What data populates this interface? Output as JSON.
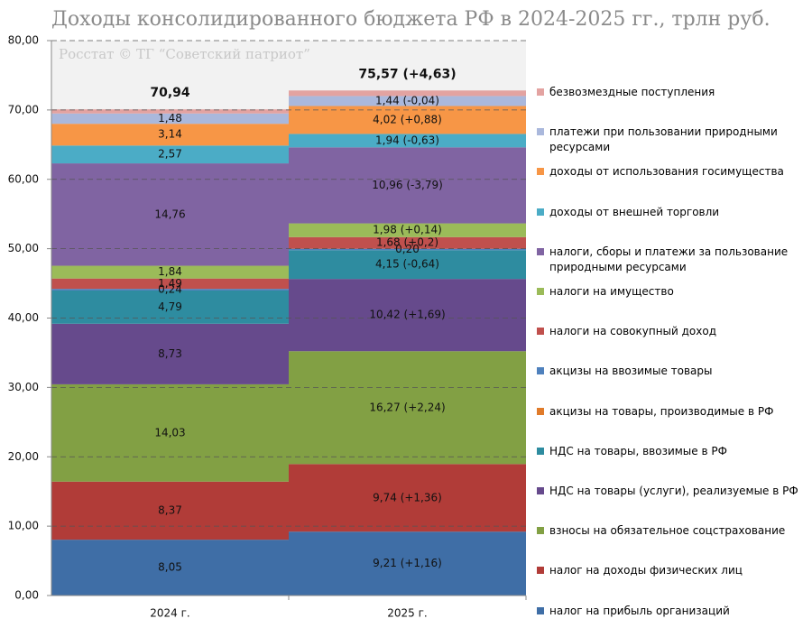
{
  "chart_data": {
    "type": "stacked_bar",
    "title": "Доходы консолидированного бюджета РФ в 2024-2025 гг., трлн руб.",
    "watermark": "Росстат © ТГ “Советский патриот”",
    "categories": [
      "2024 г.",
      "2025 г."
    ],
    "total_labels": [
      "70,94",
      "75,57 (+4,63)"
    ],
    "ylim": [
      0,
      80
    ],
    "yticks": [
      {
        "value": 0,
        "label": "0,00"
      },
      {
        "value": 10,
        "label": "10,00"
      },
      {
        "value": 20,
        "label": "20,00"
      },
      {
        "value": 30,
        "label": "30,00"
      },
      {
        "value": 40,
        "label": "40,00"
      },
      {
        "value": 50,
        "label": "50,00"
      },
      {
        "value": 60,
        "label": "60,00"
      },
      {
        "value": 70,
        "label": "70,00"
      },
      {
        "value": 80,
        "label": "80,00"
      }
    ],
    "grid": true,
    "series": [
      {
        "name": "налог на прибыль организаций",
        "color": "#3f6ea6",
        "values": [
          8.05,
          9.21
        ],
        "value_labels": [
          "8,05",
          "9,21 (+1,16)"
        ]
      },
      {
        "name": "налог на доходы физических лиц",
        "color": "#b13c38",
        "values": [
          8.37,
          9.74
        ],
        "value_labels": [
          "8,37",
          "9,74 (+1,36)"
        ]
      },
      {
        "name": "взносы на обязательное соцстрахование",
        "color": "#82a044",
        "values": [
          14.03,
          16.27
        ],
        "value_labels": [
          "14,03",
          "16,27 (+2,24)"
        ]
      },
      {
        "name": "НДС на товары (услуги), реализуемые в РФ",
        "color": "#664a8c",
        "values": [
          8.73,
          10.42
        ],
        "value_labels": [
          "8,73",
          "10,42 (+1,69)"
        ]
      },
      {
        "name": "НДС на товары, ввозимые в РФ",
        "color": "#2e8ca0",
        "values": [
          4.79,
          4.15
        ],
        "value_labels": [
          "4,79",
          "4,15 (-0,64)"
        ]
      },
      {
        "name": "акцизы на товары, производимые в РФ",
        "color": "#e07b2a",
        "values": [
          null,
          null
        ],
        "value_labels": [
          null,
          null
        ]
      },
      {
        "name": "акцизы на ввозимые товары",
        "color": "#4f81bd",
        "values": [
          0.24,
          0.2
        ],
        "value_labels": [
          "0,24",
          "0,20"
        ]
      },
      {
        "name": "налоги на совокупный доход",
        "color": "#c0504d",
        "values": [
          1.49,
          1.68
        ],
        "value_labels": [
          "1,49",
          "1,68 (+0,2)"
        ]
      },
      {
        "name": "налоги на имущество",
        "color": "#9bbb59",
        "values": [
          1.84,
          1.98
        ],
        "value_labels": [
          "1,84",
          "1,98 (+0,14)"
        ]
      },
      {
        "name": "налоги, сборы и платежи за пользование природными ресурсами",
        "color": "#8064a2",
        "values": [
          14.76,
          10.96
        ],
        "value_labels": [
          "14,76",
          "10,96 (-3,79)"
        ]
      },
      {
        "name": "доходы от внешней торговли",
        "color": "#4bacc6",
        "values": [
          2.57,
          1.94
        ],
        "value_labels": [
          "2,57",
          "1,94 (-0,63)"
        ]
      },
      {
        "name": "доходы от использования госимущества",
        "color": "#f79646",
        "values": [
          3.14,
          4.02
        ],
        "value_labels": [
          "3,14",
          "4,02 (+0,88)"
        ]
      },
      {
        "name": "платежи при пользовании природными ресурсами",
        "color": "#aab8dc",
        "values": [
          1.48,
          1.44
        ],
        "value_labels": [
          "1,48",
          "1,44 (-0,04)"
        ]
      },
      {
        "name": "безвозмездные поступления",
        "color": "#e3a3a1",
        "values": [
          0.6,
          0.8
        ],
        "value_labels": [
          null,
          null
        ]
      }
    ]
  }
}
